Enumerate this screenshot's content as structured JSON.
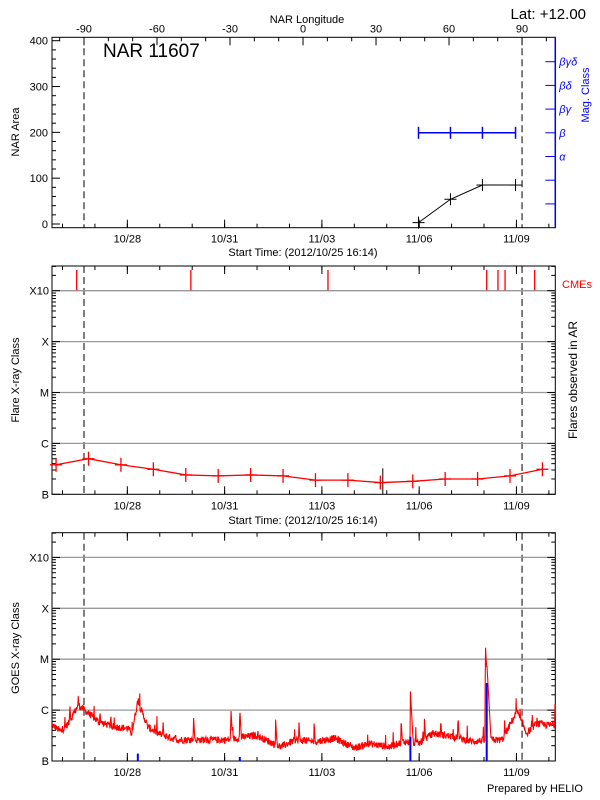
{
  "header": {
    "lat_label": "Lat: +12.00",
    "prepared_by": "Prepared by HELIO"
  },
  "colors": {
    "axes": "#000000",
    "grid": "#999999",
    "area_series": "#000000",
    "mag_class": "#0000ff",
    "flare_series": "#ff0000",
    "cme": "#ff0000",
    "goes_flux": "#ff0000",
    "goes_events": "#0000ff",
    "limb_lines": "#000000"
  },
  "time_axis": {
    "xlim": [
      "2012-10-25T16:14",
      "2012-11-10T04:46"
    ],
    "ticks": [
      {
        "label": "10/28",
        "time": "2012-10-28T00:00"
      },
      {
        "label": "10/31",
        "time": "2012-10-31T00:00"
      },
      {
        "label": "11/03",
        "time": "2012-11-03T00:00"
      },
      {
        "label": "11/06",
        "time": "2012-11-06T00:00"
      },
      {
        "label": "11/09",
        "time": "2012-11-09T00:00"
      }
    ],
    "xlabel": "Start Time: (2012/10/25 16:14)"
  },
  "chart_data": [
    {
      "type": "line",
      "title": "NAR 11607",
      "ylabel": "NAR Area",
      "y2label": "Mag. Class",
      "top_axis_label": "NAR Longitude",
      "top_ticks": [
        -90,
        -60,
        -30,
        0,
        30,
        60,
        90
      ],
      "limb_times": [
        "2012-10-26T15:55",
        "2012-11-09T04:09"
      ],
      "ylim": [
        0,
        400
      ],
      "y_ticks": [
        0,
        100,
        200,
        300,
        400
      ],
      "mag_class_levels": [
        "βγδ",
        "βδ",
        "βγ",
        "β",
        "α"
      ],
      "grid": false,
      "series": [
        {
          "times": [
            "2012-11-05T23:30",
            "2012-11-06T23:10",
            "2012-11-07T22:50",
            "2012-11-08T23:20"
          ],
          "values": [
            3,
            54,
            85,
            85
          ]
        },
        {
          "times": [
            "2012-11-05T23:30",
            "2012-11-06T23:10",
            "2012-11-07T22:50",
            "2012-11-08T23:20"
          ],
          "values": [
            "β",
            "β",
            "β",
            "β"
          ]
        }
      ]
    },
    {
      "type": "line",
      "ylabel": "Flare X-ray Class",
      "y2label": "Flares observed in AR",
      "cme_label": "CMEs",
      "y_scale": "log",
      "ylim": [
        1e-07,
        0.003
      ],
      "y_ticks": [
        {
          "label": "B",
          "flux": 1e-07
        },
        {
          "label": "C",
          "flux": 1e-06
        },
        {
          "label": "M",
          "flux": 1e-05
        },
        {
          "label": "X",
          "flux": 0.0001
        },
        {
          "label": "X10",
          "flux": 0.001
        }
      ],
      "grid": true,
      "limb_times": [
        "2012-10-26T15:55",
        "2012-11-09T04:09"
      ],
      "cme_times": [
        "2012-10-26T10:30",
        "2012-10-29T23:00",
        "2012-11-03T04:30",
        "2012-11-08T02:00",
        "2012-11-08T10:20",
        "2012-11-08T15:35",
        "2012-11-09T13:30"
      ],
      "flare_markers": [
        {
          "time": "2012-11-04T21:05",
          "flux": 2.7e-07
        }
      ],
      "series": [
        {
          "times": [
            "2012-10-25T19:15",
            "2012-10-26T19:15",
            "2012-10-27T19:15",
            "2012-10-28T19:15",
            "2012-10-29T19:15",
            "2012-10-30T19:15",
            "2012-10-31T19:15",
            "2012-11-01T19:15",
            "2012-11-02T19:15",
            "2012-11-03T19:15",
            "2012-11-04T19:15",
            "2012-11-05T19:15",
            "2012-11-06T19:15",
            "2012-11-07T19:15",
            "2012-11-08T19:15",
            "2012-11-09T19:15"
          ],
          "values": [
            3.8e-07,
            5e-07,
            3.8e-07,
            3.1e-07,
            2.4e-07,
            2.3e-07,
            2.4e-07,
            2.3e-07,
            1.9e-07,
            1.9e-07,
            1.7e-07,
            1.8e-07,
            2e-07,
            2e-07,
            2.3e-07,
            3.1e-07
          ]
        }
      ]
    },
    {
      "type": "line",
      "ylabel": "GOES X-ray Class",
      "y_scale": "log",
      "ylim": [
        1e-07,
        0.003
      ],
      "y_ticks": [
        {
          "label": "B",
          "flux": 1e-07
        },
        {
          "label": "C",
          "flux": 1e-06
        },
        {
          "label": "M",
          "flux": 1e-05
        },
        {
          "label": "X",
          "flux": 0.0001
        },
        {
          "label": "X10",
          "flux": 0.001
        }
      ],
      "grid": true,
      "background": {
        "times": [
          "2012-10-25T16:14",
          "2012-10-25T22:55",
          "2012-10-26T04:35",
          "2012-10-26T11:40",
          "2012-10-26T19:15",
          "2012-10-27T02:40",
          "2012-10-27T13:45",
          "2012-10-28T00:25",
          "2012-10-28T03:15",
          "2012-10-28T07:45",
          "2012-10-28T15:05",
          "2012-10-28T22:25",
          "2012-10-29T12:50",
          "2012-10-30T03:35",
          "2012-10-31T01:15",
          "2012-10-31T23:00",
          "2012-11-01T17:25",
          "2012-11-02T04:25",
          "2012-11-02T19:05",
          "2012-11-03T09:30",
          "2012-11-04T00:15",
          "2012-11-04T10:55",
          "2012-11-05T01:45",
          "2012-11-05T12:35",
          "2012-11-05T23:40",
          "2012-11-06T10:25",
          "2012-11-07T01:05",
          "2012-11-07T15:30",
          "2012-11-08T02:30",
          "2012-11-08T13:30",
          "2012-11-09T00:20",
          "2012-11-09T07:35",
          "2012-11-09T14:55",
          "2012-11-09T22:20",
          "2012-11-10T03:25"
        ],
        "values": [
          5.1e-07,
          3.8e-07,
          5.5e-07,
          1.26e-06,
          8.7e-07,
          5.9e-07,
          4.7e-07,
          4.4e-07,
          3.5e-07,
          1.5e-06,
          4.7e-07,
          3.5e-07,
          2.6e-07,
          2.6e-07,
          2.6e-07,
          3.2e-07,
          1.9e-07,
          2.6e-07,
          2.4e-07,
          2.8e-07,
          1.8e-07,
          2.2e-07,
          1.9e-07,
          2.4e-07,
          2.2e-07,
          3.5e-07,
          3e-07,
          2.4e-07,
          2.6e-07,
          2.6e-07,
          9.4e-07,
          3.5e-07,
          5.5e-07,
          5.1e-07,
          5.1e-07
        ]
      },
      "peaks": [
        {
          "time": "2012-10-26T05:25",
          "flux": 1.35e-06
        },
        {
          "time": "2012-10-26T11:40",
          "flux": 1.9e-06
        },
        {
          "time": "2012-10-27T03:45",
          "flux": 1e-06
        },
        {
          "time": "2012-10-27T11:45",
          "flux": 8.5e-07
        },
        {
          "time": "2012-10-29T02:25",
          "flux": 6e-07
        },
        {
          "time": "2012-10-30T01:00",
          "flux": 7.6e-07
        },
        {
          "time": "2012-10-31T04:40",
          "flux": 1.05e-06
        },
        {
          "time": "2012-10-31T11:15",
          "flux": 1.05e-06
        },
        {
          "time": "2012-11-01T13:45",
          "flux": 6.6e-07
        },
        {
          "time": "2012-11-02T07:00",
          "flux": 6e-07
        },
        {
          "time": "2012-11-02T18:15",
          "flux": 5.9e-07
        },
        {
          "time": "2012-11-05T10:40",
          "flux": 6.4e-07
        },
        {
          "time": "2012-11-05T17:30",
          "flux": 2.4e-06
        },
        {
          "time": "2012-11-06T03:55",
          "flux": 6.9e-07
        },
        {
          "time": "2012-11-06T16:00",
          "flux": 6.5e-07
        },
        {
          "time": "2012-11-07T04:45",
          "flux": 7.6e-07
        },
        {
          "time": "2012-11-08T01:05",
          "flux": 1.8e-05
        },
        {
          "time": "2012-11-08T02:10",
          "flux": 7.7e-06
        },
        {
          "time": "2012-11-08T15:15",
          "flux": 6.3e-07
        },
        {
          "time": "2012-11-10T04:40",
          "flux": 2.1e-06
        }
      ],
      "events": [
        {
          "time": "2012-10-28T07:45",
          "flux": 1.4e-07
        },
        {
          "time": "2012-10-31T11:15",
          "flux": 1.2e-07
        },
        {
          "time": "2012-11-05T17:30",
          "flux": 3e-07
        },
        {
          "time": "2012-11-08T02:00",
          "flux": 3.4e-06
        }
      ]
    }
  ]
}
